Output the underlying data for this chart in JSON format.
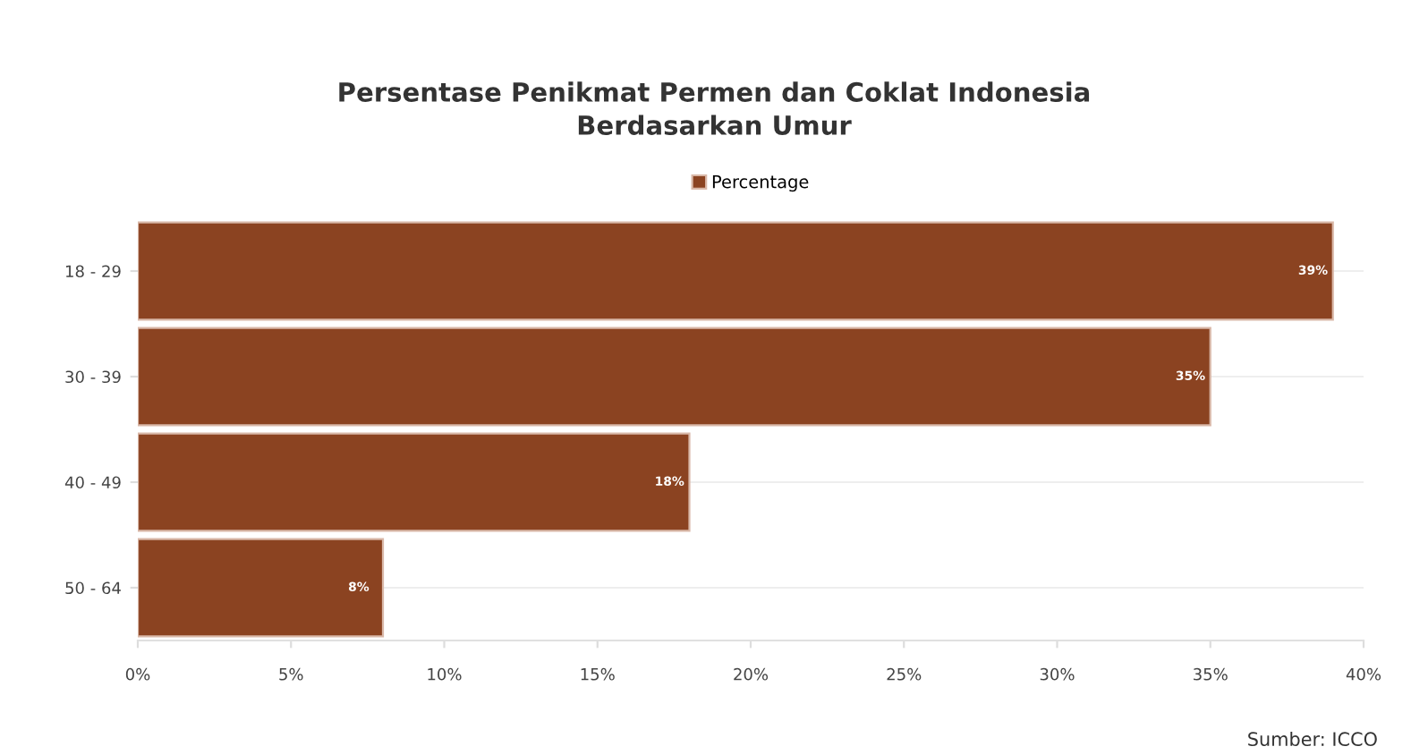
{
  "chart_data": {
    "type": "bar",
    "orientation": "horizontal",
    "title": "Persentase Penikmat Permen dan Coklat Indonesia\nBerdasarkan Umur",
    "categories": [
      "18 - 29",
      "30 - 39",
      "40 - 49",
      "50 - 64"
    ],
    "series": [
      {
        "name": "Percentage",
        "color": "#8b4321",
        "values": [
          39,
          35,
          18,
          8
        ],
        "value_labels": [
          "39%",
          "35%",
          "18%",
          "8%"
        ]
      }
    ],
    "xlim": [
      0,
      40
    ],
    "xticks": [
      {
        "value": 0,
        "label": "0%"
      },
      {
        "value": 5,
        "label": "5%"
      },
      {
        "value": 10,
        "label": "10%"
      },
      {
        "value": 15,
        "label": "15%"
      },
      {
        "value": 20,
        "label": "20%"
      },
      {
        "value": 25,
        "label": "25%"
      },
      {
        "value": 30,
        "label": "30%"
      },
      {
        "value": 35,
        "label": "35%"
      },
      {
        "value": 40,
        "label": "40%"
      }
    ],
    "grid": "y",
    "legend": "top",
    "annotations": [
      "Sumber: ICCO"
    ]
  }
}
